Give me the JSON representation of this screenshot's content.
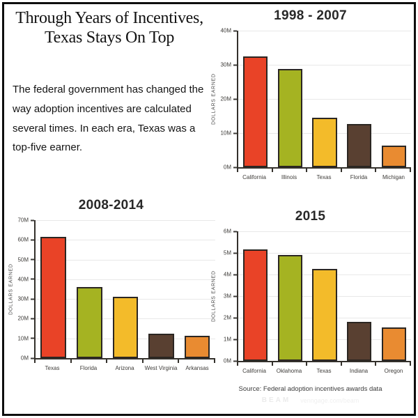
{
  "header": {
    "title_line1": "Through Years of Incentives,",
    "title_line2": "Texas Stays On Top",
    "description": "The federal government has changed the way adoption incentives are calculated several times. In each era, Texas was a top-five earner."
  },
  "palette": {
    "bar_colors": [
      "#e94327",
      "#a5b322",
      "#f3bb2a",
      "#594031",
      "#e98b31"
    ],
    "bar_outline": "#2b2622",
    "axis": "#33302b",
    "gridline": "#e8e8e8"
  },
  "chart_data": [
    {
      "type": "bar",
      "title": "1998 - 2007",
      "ylabel": "DOLLARS EARNED",
      "unit": "millions of dollars",
      "categories": [
        "California",
        "Illinois",
        "Texas",
        "Florida",
        "Michigan"
      ],
      "values": [
        32.4,
        28.8,
        14.5,
        12.7,
        6.4
      ],
      "ylim": [
        0,
        40
      ],
      "yticks": [
        "0M",
        "10M",
        "20M",
        "30M",
        "40M"
      ],
      "grid": true,
      "legend": "none"
    },
    {
      "type": "bar",
      "title": "2008-2014",
      "ylabel": "DOLLARS EARNED",
      "unit": "millions of dollars",
      "categories": [
        "Texas",
        "Florida",
        "Arizona",
        "West Virginia",
        "Arkansas"
      ],
      "values": [
        61.5,
        36,
        31.2,
        12.4,
        11.4
      ],
      "ylim": [
        0,
        70
      ],
      "yticks": [
        "0M",
        "10M",
        "20M",
        "30M",
        "40M",
        "50M",
        "60M",
        "70M"
      ],
      "grid": true,
      "legend": "none"
    },
    {
      "type": "bar",
      "title": "2015",
      "ylabel": "DOLLARS EARNED",
      "unit": "millions of dollars",
      "categories": [
        "California",
        "Oklahoma",
        "Texas",
        "Indiana",
        "Oregon"
      ],
      "values": [
        5.15,
        4.9,
        4.25,
        1.8,
        1.55
      ],
      "ylim": [
        0,
        6
      ],
      "yticks": [
        "0M",
        "1M",
        "2M",
        "3M",
        "4M",
        "5M",
        "6M"
      ],
      "grid": true,
      "legend": "none"
    }
  ],
  "footer": {
    "source": "Source: Federal adoption incentives awards data",
    "watermark_brand": "BEAM",
    "watermark_url": "venngage.com/beam"
  }
}
